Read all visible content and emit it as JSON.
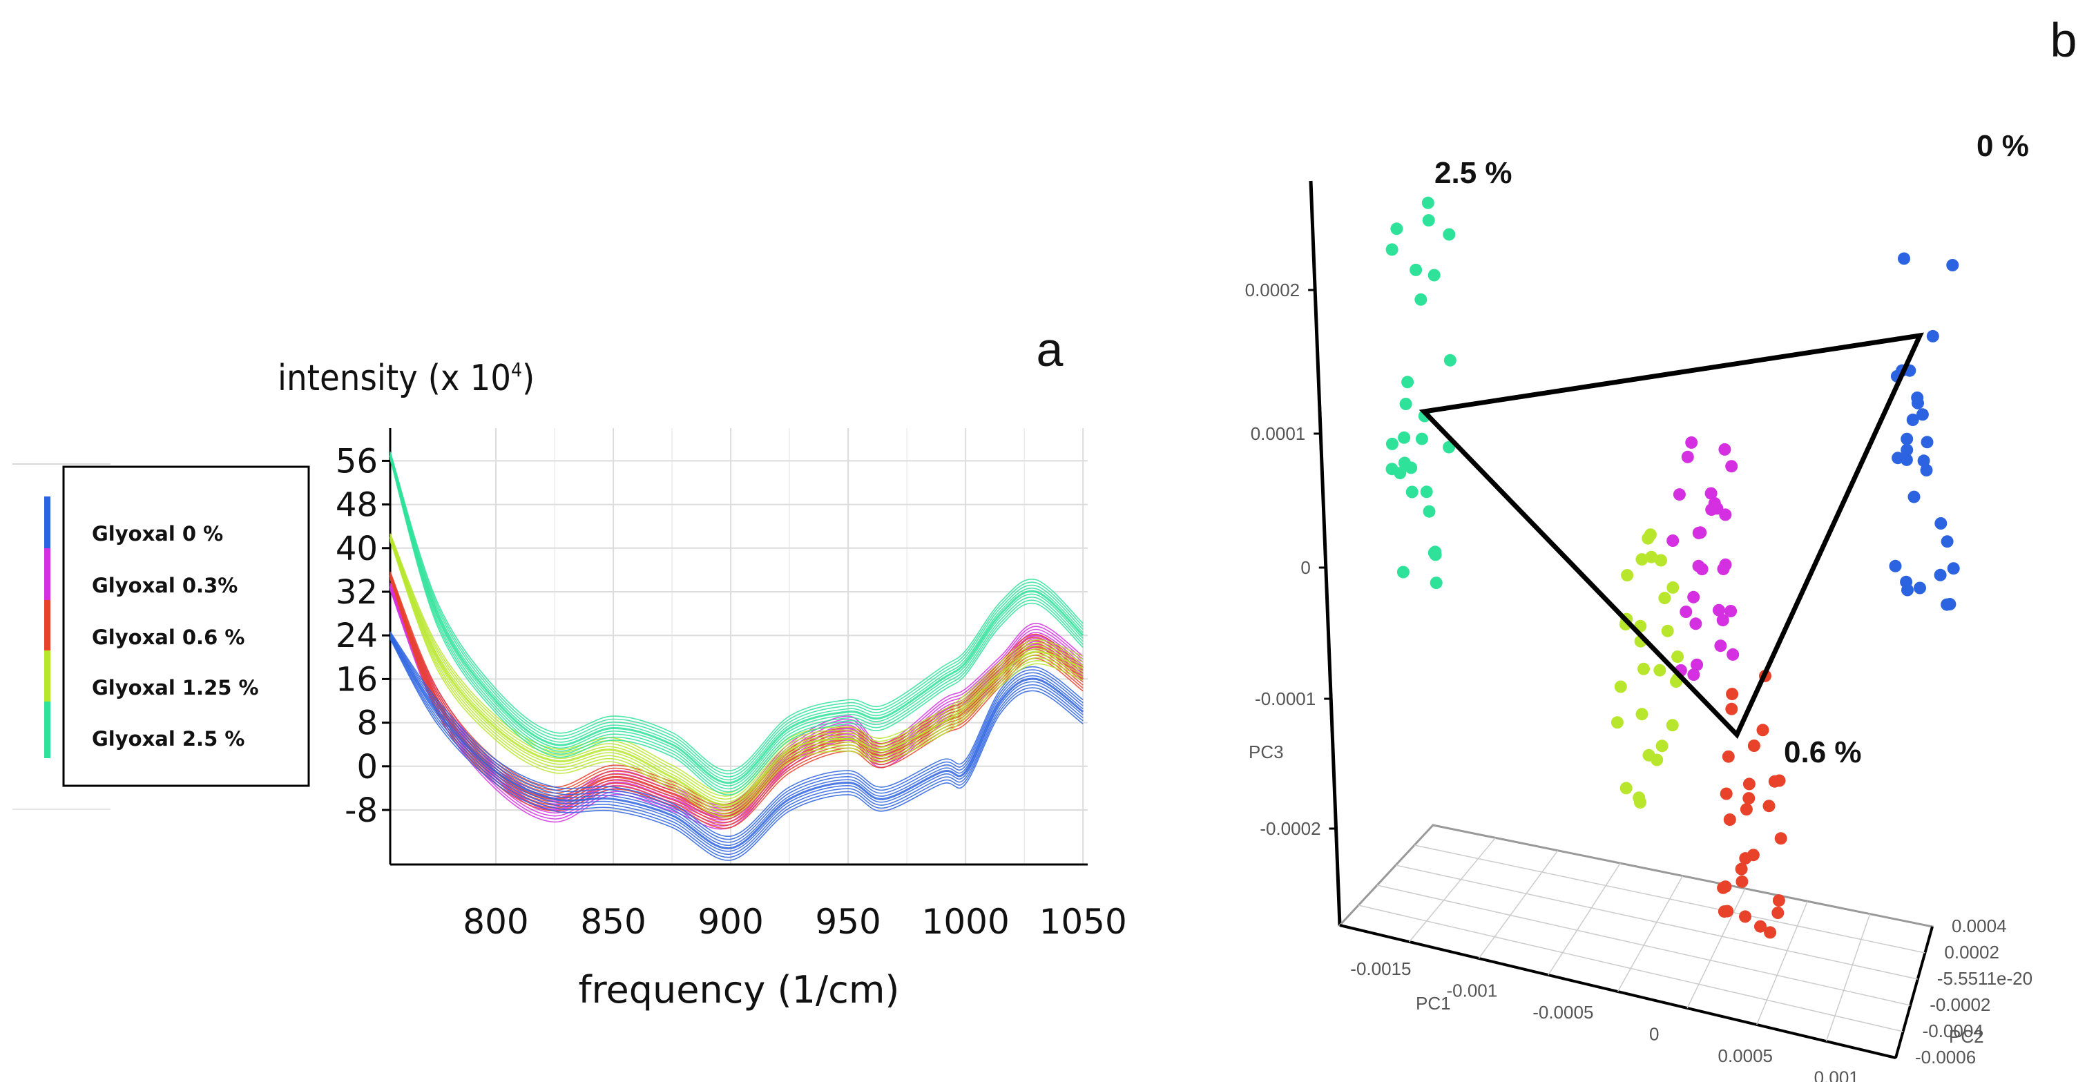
{
  "chart_data": [
    {
      "panel": "a",
      "type": "line",
      "ylabel_text": "intensity (x 10",
      "ylabel_exp": "4",
      "ylabel_close": ")",
      "xlabel": "frequency (1/cm)",
      "xlim": [
        755,
        1052
      ],
      "ylim": [
        -18,
        62
      ],
      "x_ticks": [
        800,
        850,
        900,
        950,
        1000,
        1050
      ],
      "y_ticks": [
        56,
        48,
        40,
        32,
        24,
        16,
        8,
        0,
        -8
      ],
      "legend_position": "left",
      "series": [
        {
          "name": "Glyoxal 0 %",
          "color": "#2b63e0",
          "x": [
            755,
            775,
            800,
            825,
            850,
            875,
            900,
            925,
            950,
            965,
            990,
            1000,
            1015,
            1030,
            1050
          ],
          "y": [
            24,
            10,
            -1,
            -6,
            -6,
            -9,
            -15,
            -6,
            -3,
            -6,
            -1,
            -1,
            12,
            16,
            10
          ]
        },
        {
          "name": "Glyoxal 0.3%",
          "color": "#d42fe0",
          "x": [
            755,
            775,
            800,
            825,
            850,
            875,
            900,
            925,
            950,
            965,
            990,
            1000,
            1015,
            1030,
            1050
          ],
          "y": [
            33,
            12,
            -2,
            -8,
            -3,
            -6,
            -9,
            2,
            7,
            2,
            10,
            12,
            18,
            24,
            18
          ]
        },
        {
          "name": "Glyoxal 0.6 %",
          "color": "#e8422a",
          "x": [
            755,
            775,
            800,
            825,
            850,
            875,
            900,
            925,
            950,
            965,
            990,
            1000,
            1015,
            1030,
            1050
          ],
          "y": [
            35,
            12,
            -1,
            -6,
            -2,
            -5,
            -9,
            1,
            5,
            2,
            8,
            10,
            17,
            22,
            16
          ]
        },
        {
          "name": "Glyoxal 1.25 %",
          "color": "#b7e62c",
          "x": [
            755,
            775,
            800,
            825,
            850,
            875,
            900,
            925,
            950,
            965,
            990,
            1000,
            1015,
            1030,
            1050
          ],
          "y": [
            42,
            20,
            7,
            1,
            3,
            -2,
            -7,
            3,
            5,
            3,
            8,
            11,
            17,
            21,
            18
          ]
        },
        {
          "name": "Glyoxal 2.5 %",
          "color": "#2ee29a",
          "x": [
            755,
            775,
            800,
            825,
            850,
            875,
            900,
            925,
            950,
            965,
            990,
            1000,
            1015,
            1030,
            1050
          ],
          "y": [
            57,
            28,
            12,
            4,
            7,
            4,
            -3,
            7,
            10,
            9,
            16,
            19,
            28,
            32,
            24
          ]
        }
      ]
    },
    {
      "panel": "b",
      "type": "scatter",
      "xlabel": "PC1",
      "ylabel": "PC3",
      "zlabel": "PC2",
      "pc3_ticks": [
        "0.0002",
        "0.0001",
        "0",
        "-0.0001",
        "-0.0002"
      ],
      "pc1_ticks": [
        "-0.0015",
        "-0.001",
        "-0.0005",
        "0",
        "0.0005",
        "0.001"
      ],
      "pc2_ticks": [
        "0.0004",
        "0.0002",
        "-5.5511e-20",
        "-0.0002",
        "-0.0004",
        "-0.0006"
      ],
      "clusters": [
        {
          "name": "0 %",
          "color": "#2b63e0",
          "pc1": 0.0011,
          "pc3_range": [
            -5e-05,
            0.00024
          ]
        },
        {
          "name": "0.3 %",
          "color": "#d42fe0",
          "pc1": 0.0002,
          "pc3_range": [
            -8e-05,
            0.0001
          ]
        },
        {
          "name": "0.6 %",
          "color": "#e8422a",
          "pc1": 0.0004,
          "pc3_range": [
            -0.00027,
            -6e-05
          ]
        },
        {
          "name": "1.25 %",
          "color": "#b7e62c",
          "pc1": 0.0,
          "pc3_range": [
            -0.00018,
            3e-05
          ]
        },
        {
          "name": "2.5 %",
          "color": "#2ee29a",
          "pc1": -0.0012,
          "pc3_range": [
            -3e-05,
            0.00028
          ]
        }
      ],
      "annotations": [
        "2.5 %",
        "0 %",
        "0.6 %"
      ],
      "triangle_vertices": [
        "2.5 %",
        "0 %",
        "0.6 %"
      ]
    }
  ],
  "panel_labels": {
    "a": "a",
    "b": "b"
  }
}
